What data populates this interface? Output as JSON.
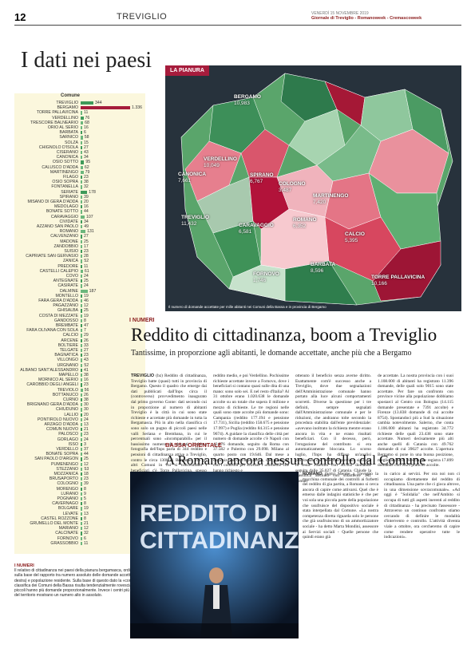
{
  "header": {
    "page": "12",
    "section": "TREVIGLIO",
    "date": "VENERDÌ 15 NOVEMBRE 2019",
    "masthead": "Giornale di Treviglio - Romanoweek - Cremascoweek"
  },
  "headline_main": "I dati nei paesi",
  "table": {
    "header": "Comune",
    "rows": [
      {
        "name": "TREVIGLIO",
        "value": "344",
        "v": 344
      },
      {
        "name": "BERGAMO",
        "value": "1.336",
        "v": 1336
      },
      {
        "name": "TORRE PALLAVICINA",
        "value": "11",
        "v": 11
      },
      {
        "name": "VERDELLINO",
        "value": "76",
        "v": 76
      },
      {
        "name": "TRESCORE BALNEARIO",
        "value": "68",
        "v": 68
      },
      {
        "name": "ORIO AL SERIO",
        "value": "16",
        "v": 16
      },
      {
        "name": "BARBATA",
        "value": "6",
        "v": 6
      },
      {
        "name": "SARNICO",
        "value": "58",
        "v": 58
      },
      {
        "name": "SOLZA",
        "value": "15",
        "v": 15
      },
      {
        "name": "CHIGNOLO D'ISOLA",
        "value": "27",
        "v": 27
      },
      {
        "name": "CISERANO",
        "value": "43",
        "v": 43
      },
      {
        "name": "CANONICA",
        "value": "34",
        "v": 34
      },
      {
        "name": "OSIO SOTTO",
        "value": "95",
        "v": 95
      },
      {
        "name": "CALUSCO D'ADDA",
        "value": "62",
        "v": 62
      },
      {
        "name": "MARTINENGO",
        "value": "79",
        "v": 79
      },
      {
        "name": "FILAGO",
        "value": "23",
        "v": 23
      },
      {
        "name": "OSIO SOPRA",
        "value": "38",
        "v": 38
      },
      {
        "name": "FONTANELLA",
        "value": "32",
        "v": 32
      },
      {
        "name": "SERIATE",
        "value": "178",
        "v": 178
      },
      {
        "name": "SPIRANO",
        "value": "39",
        "v": 39
      },
      {
        "name": "MISANO DI GERA D'ADDA",
        "value": "20",
        "v": 20
      },
      {
        "name": "MEDOLAGO",
        "value": "16",
        "v": 16
      },
      {
        "name": "BONATE SOTTO",
        "value": "44",
        "v": 44
      },
      {
        "name": "CARAVAGGIO",
        "value": "107",
        "v": 107
      },
      {
        "name": "CIVIDATE",
        "value": "34",
        "v": 34
      },
      {
        "name": "AZZANO SAN PAOLO",
        "value": "49",
        "v": 49
      },
      {
        "name": "ROMANO",
        "value": "131",
        "v": 131
      },
      {
        "name": "CALVENZANO",
        "value": "27",
        "v": 27
      },
      {
        "name": "MADONE",
        "value": "25",
        "v": 25
      },
      {
        "name": "ZANDOBBIO",
        "value": "17",
        "v": 17
      },
      {
        "name": "SUISIO",
        "value": "23",
        "v": 23
      },
      {
        "name": "CAPRIATE SAN GERVASIO",
        "value": "28",
        "v": 28
      },
      {
        "name": "ZANICA",
        "value": "52",
        "v": 52
      },
      {
        "name": "PREDORE",
        "value": "11",
        "v": 11
      },
      {
        "name": "CASTELLI CALEPIO",
        "value": "61",
        "v": 61
      },
      {
        "name": "COVO",
        "value": "24",
        "v": 24
      },
      {
        "name": "ANTEGNATE",
        "value": "25",
        "v": 25
      },
      {
        "name": "CASIRATE",
        "value": "24",
        "v": 24
      },
      {
        "name": "DALMINE",
        "value": "187",
        "v": 187
      },
      {
        "name": "MONTELLO",
        "value": "19",
        "v": 19
      },
      {
        "name": "FARA GERA D'ADDA",
        "value": "46",
        "v": 46
      },
      {
        "name": "PAGAZZANO",
        "value": "12",
        "v": 12
      },
      {
        "name": "GHISALBA",
        "value": "25",
        "v": 25
      },
      {
        "name": "COSTA DI MEZZATE",
        "value": "19",
        "v": 19
      },
      {
        "name": "GANDOSSO",
        "value": "8",
        "v": 8
      },
      {
        "name": "BREMBATE",
        "value": "47",
        "v": 47
      },
      {
        "name": "FARA OLIVANA CON SOLA",
        "value": "7",
        "v": 7
      },
      {
        "name": "CALCIO",
        "value": "29",
        "v": 29
      },
      {
        "name": "ARCENE",
        "value": "26",
        "v": 26
      },
      {
        "name": "BOLTIERE",
        "value": "33",
        "v": 33
      },
      {
        "name": "TELGATE",
        "value": "27",
        "v": 27
      },
      {
        "name": "BAGNATICA",
        "value": "23",
        "v": 23
      },
      {
        "name": "VILLONGO",
        "value": "43",
        "v": 43
      },
      {
        "name": "URGNANO",
        "value": "52",
        "v": 52
      },
      {
        "name": "ALBANO SANT'ALESSANDRO",
        "value": "41",
        "v": 41
      },
      {
        "name": "MAPELLO",
        "value": "38",
        "v": 38
      },
      {
        "name": "MORNICO AL SERIO",
        "value": "16",
        "v": 16
      },
      {
        "name": "CAROBBIO DEGLI ANGELI",
        "value": "23",
        "v": 23
      },
      {
        "name": "TREVIOLO",
        "value": "56",
        "v": 56
      },
      {
        "name": "BOTTANUCO",
        "value": "26",
        "v": 26
      },
      {
        "name": "CURNO",
        "value": "38",
        "v": 38
      },
      {
        "name": "BRIGNANO GERA D'ADDA",
        "value": "30",
        "v": 30
      },
      {
        "name": "CHIUDUNO",
        "value": "30",
        "v": 30
      },
      {
        "name": "LALLIO",
        "value": "20",
        "v": 20
      },
      {
        "name": "PONTIROLO NUOVO",
        "value": "24",
        "v": 24
      },
      {
        "name": "ARZAGO D'ADDA",
        "value": "13",
        "v": 13
      },
      {
        "name": "COMUN NUOVO",
        "value": "21",
        "v": 21
      },
      {
        "name": "PALOSCO",
        "value": "23",
        "v": 23
      },
      {
        "name": "GORLAGO",
        "value": "24",
        "v": 24
      },
      {
        "name": "ISSO",
        "value": "3",
        "v": 3
      },
      {
        "name": "VERDELLO",
        "value": "37",
        "v": 37
      },
      {
        "name": "BONATE SOPRA",
        "value": "44",
        "v": 44
      },
      {
        "name": "SAN PAOLO D'ARGON",
        "value": "25",
        "v": 25
      },
      {
        "name": "PUMENENGO",
        "value": "12",
        "v": 12
      },
      {
        "name": "STEZZANO",
        "value": "53",
        "v": 53
      },
      {
        "name": "MOZZANICA",
        "value": "18",
        "v": 18
      },
      {
        "name": "BRUSAPORTO",
        "value": "23",
        "v": 23
      },
      {
        "name": "COLOGNO",
        "value": "39",
        "v": 39
      },
      {
        "name": "MORENGO",
        "value": "8",
        "v": 8
      },
      {
        "name": "LURANO",
        "value": "9",
        "v": 9
      },
      {
        "name": "POGNANO",
        "value": "5",
        "v": 5
      },
      {
        "name": "CAVERNAGO",
        "value": "8",
        "v": 8
      },
      {
        "name": "BOLGARE",
        "value": "19",
        "v": 19
      },
      {
        "name": "LEVATE",
        "value": "13",
        "v": 13
      },
      {
        "name": "CASTEL ROZZONE",
        "value": "8",
        "v": 8
      },
      {
        "name": "GRUMELLO DEL MONTE",
        "value": "21",
        "v": 21
      },
      {
        "name": "MARIANO",
        "value": "12",
        "v": 12
      },
      {
        "name": "CALCINATE",
        "value": "32",
        "v": 32
      },
      {
        "name": "FORNOVO",
        "value": "6",
        "v": 6
      },
      {
        "name": "GRASSOBBIO",
        "value": "11",
        "v": 11
      }
    ]
  },
  "note": {
    "title": "I NUMERI",
    "text": "Il relativo di cittadinanza nei paesi della pianura bergamasca, ordinati sulla base del rapporto tra numero assoluto delle domande accettate (a destra) e popolazione residente. Sulla base di questo dato la «consueta» classifica dei Comuni della Bassa risulta tendenzialmente rovesciata: i più piccoli hanno più domande proporzionalmente. Invece i centri più grandi del territorio mostrano un numero alto in assoluto."
  },
  "map": {
    "tag": "LA PIANURA",
    "caption": "Il numero di domande accettate per mille abitanti nei Comuni della Bassa e in provincia di Bergamo",
    "labels": [
      {
        "name": "BERGAMO",
        "value": "10,983"
      },
      {
        "name": "CANONICA",
        "value": "7,661"
      },
      {
        "name": "VERDELLINO",
        "value": "10,049"
      },
      {
        "name": "SPIRANO",
        "value": "6,767"
      },
      {
        "name": "COLOGNO",
        "value": "3,487"
      },
      {
        "name": "MARTINENGO",
        "value": "7,420"
      },
      {
        "name": "TREVIGLIO",
        "value": "11,432"
      },
      {
        "name": "CARAVAGGIO",
        "value": "6,581"
      },
      {
        "name": "ROMANO",
        "value": "6,352"
      },
      {
        "name": "CALCIO",
        "value": "5,395"
      },
      {
        "name": "BARBATA",
        "value": "8,596"
      },
      {
        "name": "FORNOVO",
        "value": "1,746"
      },
      {
        "name": "TORRE PALLAVICINA",
        "value": "10,166"
      }
    ]
  },
  "article1": {
    "kicker": "I NUMERI",
    "headline": "Reddito di cittadinanza, boom a Treviglio",
    "subhead": "Tantissime, in proporzione agli abitanti, le domande accettate, anche più che a Bergamo",
    "dateline": "TREVIGLIO",
    "cols": [
      "(bz) Reddito di cittadinanza, Treviglio batte (quasi) tutti in provincia di Bergamo. Questo il quadro che emerge dai dati pubblicati dall'Inps circa il (controverso) provvedimento inaugurato dal primo governo Conte: dati secondo cui in proporzione al numero di abitanti Treviglio è la città in cui sono state richieste e accettate più domande in tutta la Bergamasca. Più in alto nella classifica ci sono solo un pugno di piccoli paesi nelle valli Seriana e Brembana, in cui le percentuali sono «incomparabili» per il bassissimo numero di abitanti. L'ultima fotografia dell'Inps parla di 344 reddito e pensioni di cittadinanza attive a Treviglio, contro le circa 1300 di Bergamo. Tra gli altri Comuni in cui si concentrano i beneficiari c'è Torre Pallavicina, spesso fanalino di coda della Bassa quanto a",
      "reddito medio, e poi Verdellino. Pochissime richieste accettate invece a Fornovo, dove i beneficiari si contano quasi sulle dita di una mano: sono solo sei. E nel resto d'Italia? Al 31 ottobre erano 1.020.638 le domande accolte su un totale che supera il milione e mezzo di richieste. Le tre regioni nelle quali sono state accolte più domande sono: Campania (reddito 177.194 e pensione 17.731), Sicilia (reddito 158.675 e pensione 17.997) e Puglia (reddito 84.315 e pensione 9674). A guidare la classifica delle città per numero di domande accolte c'è Napoli con 42.876 domande, seguito da Roma con 37.582 e Palermo con 29.098. Milano al quarto posto con 19.646. Dal mese a disposizione dell'Inps stesso, che prosegue con i controlli per scovare i «furbetti» che hanno richiesto e",
      "ottenuto il beneficio senza averne diritto. Esattamente com'è successo anche a Treviglio, dove due segnalazioni dell'Amministrazione comunale hanno portato alla luce alcuni comportamenti scorretti. Diverse la questione per i tre definiti, sempre segnalati dall'Amministrazione comunale e per le riduzioni, che andranno tolte secondo la procedura stabilita dall'ente previdenziale: «avevano inoltrato la richiesta mentre erano ancora in vita e ne erano risultati beneficiari. Con il decesso, però, l'erogazione del contributo si era automaticamente bloccata. Lo scorso luglio, l'Inps ha diffuso un'analisi provinciale che vede due province siciliane in testa: Palermo con 46.302 domande seguita dalle 35.027 di Catania. Chiude la classifica Belluno con solamente 341 doman-",
      "de accettate. La nostra provincia con i suoi 1.108.000 di abitanti ha registrato 11.396 domande, delle quali solo 9015 sono state accettate. Per fare un confronto con province vicine alla popolazione dobbiamo spostarci al Centro con Bologna (14.115 domande presentate e 7391 accolte) e Firenze (13.838 domande di cui accolte 8754). Spostandoci più a Sud la situazione cambia notevolmente. Salerno, che conta 1.106.000 abitanti ha registrato 34.772 richieste delle quali 23.438 sono state accettate. Numeri decisamente più alti anche quelli di Catania con 49.762 domande di cui 39027 accolte. L'apertura Bergamo si pone in una buona posizione, meglio anche di Brescia che registra 17.899 domande con 9025 pratiche accolte."
    ]
  },
  "article2": {
    "kicker": "BASSA ORIENTALE",
    "headline": "A Romano ancora nessun controllo dal Comune",
    "dateline": "ROMANO",
    "photo_text": "REDDITO DI CITTADINANZA",
    "cols": [
      "(bgm) Mentre a Treviglio la macchina comunale dei controlli ai furbetti del reddito di gia partita, a Romano si cerca ancora di capire come attivarsi. Quel che è emerso dalle indagini statistiche è che per voi sola una piccola parte della popolazione che usufruisce del dispositivo sociale è stata interpellata dal Comune. «La nostra competenza diretta riguarda solo le persone che già usufruiscono di un ammortizzatore sociale - ha detto Marta Mondini, assessore ai Servizi sociali - Quelle persone che quindi erano già",
      "in carico ai servizi. Per ora noi non ci occupiamo direttamente del reddito di cittadinanza. Una parte che ci gioca altrove, in una dimensione sovracomunale». «Ad oggi è \"Solidalia\" che nell'Ambito si occupa di tutti gli aspetti inerenti al reddito di cittadinanza - ha precisato l'assessore - Attraverso un continuo confronto stiamo cercando di definire le modalità d'intervento e controllo. L'attività diventa viale a ottobre, ora cercheremo di capire come rendere operative tutte le indicazioni»."
    ]
  }
}
